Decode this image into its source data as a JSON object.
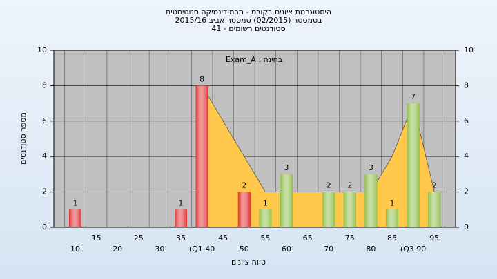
{
  "chart_data": {
    "type": "bar",
    "title": [
      "היסטוגרמת ציונים בקורס - תרמודינמיקה סטטיסטית",
      "בסמסטר  (02/2015)  סמסטר אביב 2015/16",
      "סטודנטים רשומים - 41"
    ],
    "annotation": "Exam_A : בחינה",
    "x_label": "טווח ציונים",
    "y_label": "מספר סטודנטים",
    "categories": [
      "10",
      "15",
      "20",
      "25",
      "30",
      "35",
      "(Q1 40",
      "45",
      "50",
      "55",
      "60",
      "65",
      "70",
      "75",
      "80",
      "85",
      "(Q3 90",
      "95"
    ],
    "values": [
      1,
      0,
      0,
      0,
      0,
      1,
      8,
      0,
      2,
      1,
      3,
      0,
      2,
      2,
      3,
      1,
      7,
      2
    ],
    "colors": [
      "#e03030",
      "#e03030",
      "#e03030",
      "#e03030",
      "#e03030",
      "#e03030",
      "#e03030",
      "#e03030",
      "#e03030",
      "#8fbf4a",
      "#8fbf4a",
      "#8fbf4a",
      "#8fbf4a",
      "#8fbf4a",
      "#8fbf4a",
      "#8fbf4a",
      "#8fbf4a",
      "#8fbf4a"
    ],
    "area_values": [
      null,
      null,
      null,
      null,
      null,
      null,
      8,
      6,
      4,
      2,
      2,
      2,
      2,
      2,
      2,
      4,
      7,
      2
    ],
    "area_color": "#ffc84a",
    "ylim": [
      0,
      10
    ],
    "yticks": [
      0,
      2,
      4,
      6,
      8,
      10
    ],
    "y2lim": [
      0,
      10
    ],
    "y2ticks": [
      0,
      2,
      4,
      6,
      8,
      10
    ],
    "grid": true
  }
}
